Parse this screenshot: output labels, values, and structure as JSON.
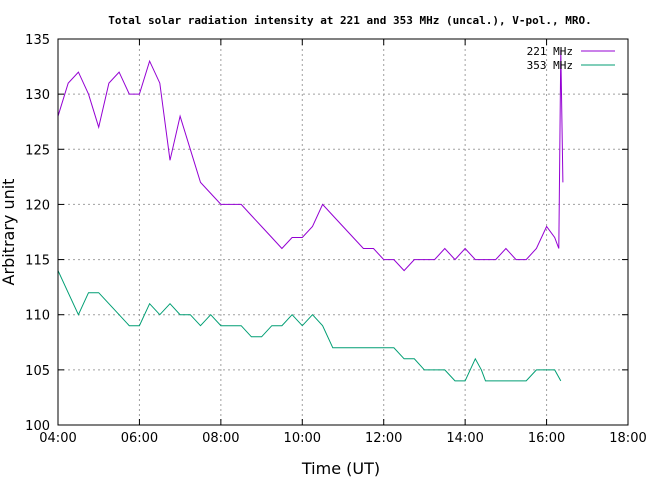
{
  "chart_data": {
    "type": "line",
    "title": "Total solar radiation intensity at 221 and 353 MHz (uncal.), V-pol., MRO.",
    "xlabel": "Time (UT)",
    "ylabel": "Arbitrary unit",
    "x_unit": "hours UT",
    "xlim": [
      4,
      18
    ],
    "ylim": [
      100,
      135
    ],
    "x_ticks": [
      4,
      6,
      8,
      10,
      12,
      14,
      16,
      18
    ],
    "x_tick_labels": [
      "04:00",
      "06:00",
      "08:00",
      "10:00",
      "12:00",
      "14:00",
      "16:00",
      "18:00"
    ],
    "y_ticks": [
      100,
      105,
      110,
      115,
      120,
      125,
      130,
      135
    ],
    "y_tick_labels": [
      "100",
      "105",
      "110",
      "115",
      "120",
      "125",
      "130",
      "135"
    ],
    "grid": true,
    "legend_position": "top-right",
    "series": [
      {
        "name": "221 MHz",
        "color": "#9400d3",
        "x": [
          4.0,
          4.25,
          4.5,
          4.75,
          5.0,
          5.25,
          5.5,
          5.75,
          6.0,
          6.25,
          6.5,
          6.75,
          7.0,
          7.25,
          7.5,
          7.75,
          8.0,
          8.25,
          8.5,
          8.75,
          9.0,
          9.25,
          9.5,
          9.75,
          10.0,
          10.25,
          10.5,
          10.75,
          11.0,
          11.25,
          11.5,
          11.75,
          12.0,
          12.25,
          12.5,
          12.75,
          13.0,
          13.25,
          13.5,
          13.75,
          14.0,
          14.25,
          14.5,
          14.75,
          15.0,
          15.25,
          15.5,
          15.75,
          16.0,
          16.2,
          16.3,
          16.35,
          16.4
        ],
        "y": [
          128,
          131,
          132,
          130,
          127,
          131,
          132,
          130,
          130,
          133,
          131,
          124,
          128,
          125,
          122,
          121,
          120,
          120,
          120,
          119,
          118,
          117,
          116,
          117,
          117,
          118,
          120,
          119,
          118,
          117,
          116,
          116,
          115,
          115,
          114,
          115,
          115,
          115,
          116,
          115,
          116,
          115,
          115,
          115,
          116,
          115,
          115,
          116,
          118,
          117,
          116,
          134,
          122
        ]
      },
      {
        "name": "353 MHz",
        "color": "#009e73",
        "x": [
          4.0,
          4.25,
          4.5,
          4.75,
          5.0,
          5.25,
          5.5,
          5.75,
          6.0,
          6.25,
          6.5,
          6.75,
          7.0,
          7.25,
          7.5,
          7.75,
          8.0,
          8.25,
          8.5,
          8.75,
          9.0,
          9.25,
          9.5,
          9.75,
          10.0,
          10.25,
          10.5,
          10.75,
          11.0,
          11.25,
          11.5,
          11.75,
          12.0,
          12.25,
          12.5,
          12.75,
          13.0,
          13.25,
          13.5,
          13.75,
          14.0,
          14.25,
          14.4,
          14.5,
          14.75,
          15.0,
          15.25,
          15.5,
          15.75,
          16.0,
          16.2,
          16.35
        ],
        "y": [
          114,
          112,
          110,
          112,
          112,
          111,
          110,
          109,
          109,
          111,
          110,
          111,
          110,
          110,
          109,
          110,
          109,
          109,
          109,
          108,
          108,
          109,
          109,
          110,
          109,
          110,
          109,
          107,
          107,
          107,
          107,
          107,
          107,
          107,
          106,
          106,
          105,
          105,
          105,
          104,
          104,
          106,
          105,
          104,
          104,
          104,
          104,
          104,
          105,
          105,
          105,
          104
        ]
      }
    ]
  }
}
